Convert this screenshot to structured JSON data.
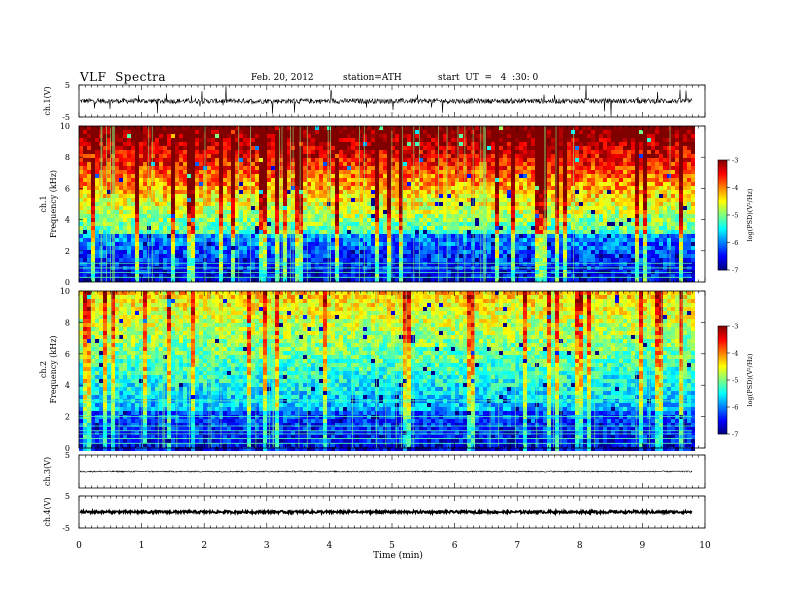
{
  "header": {
    "title": "VLF  Spectra",
    "date": "Feb. 20, 2012",
    "station": "station=ATH",
    "start": "start  UT  =   4  :30: 0"
  },
  "chart_data": [
    {
      "type": "line",
      "ylabel": "ch.1(V)",
      "ylim": [
        -5,
        5
      ],
      "yticks": [
        "5",
        "-5"
      ],
      "xlim": [
        0,
        10
      ]
    },
    {
      "type": "heatmap",
      "ylabel_lines": [
        "ch.1",
        "Frequency  (kHz)"
      ],
      "ylim": [
        0,
        10
      ],
      "yticks": [
        "10",
        "8",
        "6",
        "4",
        "2",
        "0"
      ],
      "xlim": [
        0,
        10
      ],
      "colorbar": {
        "label": "log(PSD)(V²/Hz)",
        "ticks": [
          "-3",
          "-4",
          "-5",
          "-6",
          "-7"
        ],
        "range": [
          -7,
          -3
        ]
      }
    },
    {
      "type": "heatmap",
      "ylabel_lines": [
        "ch.2",
        "Frequency  (kHz)"
      ],
      "ylim": [
        0,
        10
      ],
      "yticks": [
        "10",
        "8",
        "6",
        "4",
        "2",
        "0"
      ],
      "xlim": [
        0,
        10
      ],
      "colorbar": {
        "label": "log(PSD)(V²/Hz)",
        "ticks": [
          "-3",
          "-4",
          "-5",
          "-6",
          "-7"
        ],
        "range": [
          -7,
          -3
        ]
      }
    },
    {
      "type": "line",
      "ylabel": "ch.3(V)",
      "ylim": [
        -5,
        5
      ],
      "yticks": [
        "5"
      ],
      "xlim": [
        0,
        10
      ]
    },
    {
      "type": "line",
      "ylabel": "ch.4(V)",
      "ylim": [
        -5,
        5
      ],
      "yticks": [
        "5",
        "-5"
      ],
      "xlim": [
        0,
        10
      ],
      "xlabel": "Time  (min)",
      "xticks": [
        "0",
        "1",
        "2",
        "3",
        "4",
        "5",
        "6",
        "7",
        "8",
        "9",
        "10"
      ]
    }
  ]
}
